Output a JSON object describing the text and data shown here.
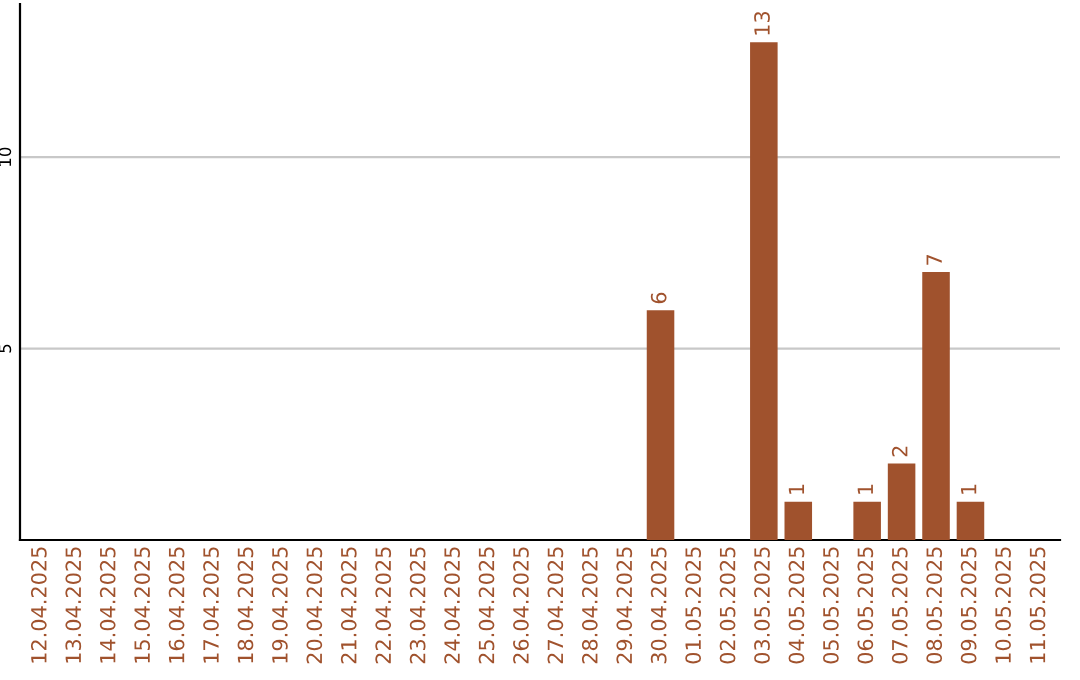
{
  "chart_data": {
    "type": "bar",
    "categories": [
      "12.04.2025",
      "13.04.2025",
      "14.04.2025",
      "15.04.2025",
      "16.04.2025",
      "17.04.2025",
      "18.04.2025",
      "19.04.2025",
      "20.04.2025",
      "21.04.2025",
      "22.04.2025",
      "23.04.2025",
      "24.04.2025",
      "25.04.2025",
      "26.04.2025",
      "27.04.2025",
      "28.04.2025",
      "29.04.2025",
      "30.04.2025",
      "01.05.2025",
      "02.05.2025",
      "03.05.2025",
      "04.05.2025",
      "05.05.2025",
      "06.05.2025",
      "07.05.2025",
      "08.05.2025",
      "09.05.2025",
      "10.05.2025",
      "11.05.2025"
    ],
    "values": [
      0,
      0,
      0,
      0,
      0,
      0,
      0,
      0,
      0,
      0,
      0,
      0,
      0,
      0,
      0,
      0,
      0,
      0,
      6,
      0,
      0,
      13,
      1,
      0,
      1,
      2,
      7,
      1,
      0,
      0
    ],
    "value_labels": [
      null,
      null,
      null,
      null,
      null,
      null,
      null,
      null,
      null,
      null,
      null,
      null,
      null,
      null,
      null,
      null,
      null,
      null,
      "6",
      null,
      null,
      "13",
      "1",
      null,
      "1",
      "2",
      "7",
      "1",
      null,
      null
    ],
    "color": "#a0522d",
    "ylim": [
      0,
      14
    ],
    "yticks": [
      5,
      10
    ],
    "grid": "y"
  }
}
